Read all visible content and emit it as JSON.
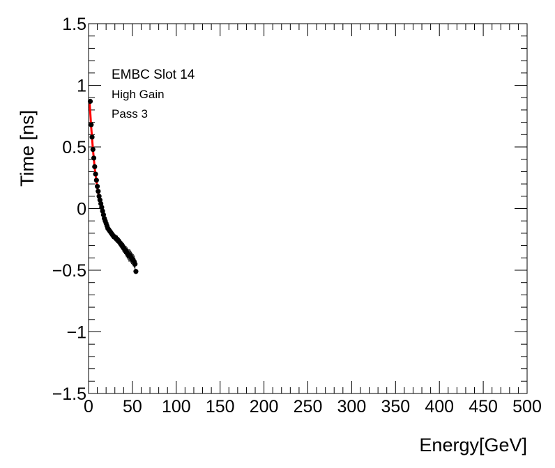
{
  "chart_data": {
    "type": "scatter",
    "title": "",
    "xlabel": "Energy[GeV]",
    "ylabel": "Time [ns]",
    "xlim": [
      0,
      500
    ],
    "ylim": [
      -1.5,
      1.5
    ],
    "x_ticks": [
      0,
      50,
      100,
      150,
      200,
      250,
      300,
      350,
      400,
      450,
      500
    ],
    "x_tick_labels": [
      "0",
      "50",
      "100",
      "150",
      "200",
      "250",
      "300",
      "350",
      "400",
      "450",
      "500"
    ],
    "y_ticks": [
      -1.5,
      -1,
      -0.5,
      0,
      0.5,
      1,
      1.5
    ],
    "y_tick_labels": [
      "−1.5",
      "−1",
      "−0.5",
      "0",
      "0.5",
      "1",
      "1.5"
    ],
    "annotations": [
      "EMBC Slot 14",
      "High Gain",
      "Pass 3"
    ],
    "colors": {
      "points": "#000000",
      "fit": "#ff0000",
      "frame": "#000000"
    },
    "series": [
      {
        "name": "data",
        "style": "points-with-errorbars",
        "x": [
          2,
          3,
          4,
          5,
          6,
          7,
          8,
          9,
          10,
          11,
          12,
          13,
          14,
          15,
          16,
          17,
          18,
          19,
          20,
          21,
          22,
          23,
          24,
          25,
          26,
          27,
          28,
          29,
          30,
          31,
          32,
          33,
          34,
          35,
          36,
          37,
          38,
          39,
          40,
          41,
          42,
          43,
          44,
          45,
          46,
          47,
          48,
          49,
          50,
          51,
          52,
          53,
          54
        ],
        "y": [
          0.87,
          0.68,
          0.58,
          0.48,
          0.41,
          0.34,
          0.28,
          0.23,
          0.18,
          0.14,
          0.1,
          0.07,
          0.04,
          0.01,
          -0.02,
          -0.05,
          -0.08,
          -0.1,
          -0.12,
          -0.14,
          -0.16,
          -0.17,
          -0.18,
          -0.19,
          -0.2,
          -0.21,
          -0.22,
          -0.23,
          -0.23,
          -0.24,
          -0.25,
          -0.25,
          -0.26,
          -0.27,
          -0.28,
          -0.29,
          -0.3,
          -0.31,
          -0.32,
          -0.33,
          -0.34,
          -0.35,
          -0.36,
          -0.37,
          -0.38,
          -0.38,
          -0.39,
          -0.4,
          -0.41,
          -0.42,
          -0.43,
          -0.45,
          -0.51
        ],
        "err": [
          0.01,
          0.01,
          0.01,
          0.01,
          0.01,
          0.01,
          0.01,
          0.01,
          0.01,
          0.01,
          0.01,
          0.01,
          0.01,
          0.015,
          0.015,
          0.015,
          0.015,
          0.015,
          0.02,
          0.02,
          0.02,
          0.02,
          0.02,
          0.02,
          0.02,
          0.02,
          0.025,
          0.025,
          0.025,
          0.025,
          0.03,
          0.03,
          0.03,
          0.03,
          0.035,
          0.035,
          0.035,
          0.04,
          0.04,
          0.04,
          0.04,
          0.045,
          0.045,
          0.045,
          0.05,
          0.05,
          0.05,
          0.05,
          0.05,
          0.05,
          0.05,
          0.05,
          0.02
        ]
      },
      {
        "name": "fit",
        "style": "line",
        "x": [
          1,
          3,
          5,
          7,
          9,
          11,
          13,
          15,
          18,
          21,
          25,
          30,
          35,
          40,
          45,
          50,
          54
        ],
        "y": [
          0.88,
          0.66,
          0.48,
          0.33,
          0.22,
          0.13,
          0.06,
          0.0,
          -0.08,
          -0.14,
          -0.19,
          -0.23,
          -0.26,
          -0.31,
          -0.36,
          -0.41,
          -0.46
        ]
      }
    ]
  }
}
